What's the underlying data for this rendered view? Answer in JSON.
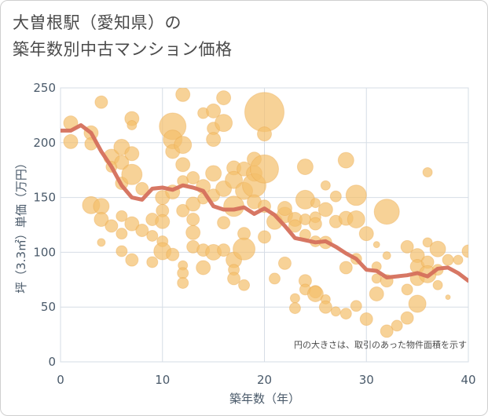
{
  "title_lines": [
    "大曽根駅（愛知県）の",
    "築年数別中古マンション価格"
  ],
  "chart_data": {
    "type": "scatter",
    "xlabel": "築年数（年）",
    "ylabel": "坪（3.3㎡）単価（万円）",
    "xlim": [
      0,
      40
    ],
    "ylim": [
      0,
      250
    ],
    "xticks": [
      0,
      10,
      20,
      30,
      40
    ],
    "yticks": [
      0,
      50,
      100,
      150,
      200,
      250
    ],
    "grid": true,
    "annotation": "円の大きさは、取引のあった物件面積を示す",
    "colors": {
      "bubble": "#f3bf6b",
      "bubble_edge": "#e8a445",
      "line": "#d5705c",
      "grid": "#d6dde6",
      "axis_text": "#4a5a6a"
    },
    "series": [
      {
        "type": "bubble",
        "points": [
          [
            1,
            218,
            9
          ],
          [
            1,
            201,
            9
          ],
          [
            3,
            209,
            9
          ],
          [
            3,
            199,
            8
          ],
          [
            4,
            237,
            8
          ],
          [
            3,
            143,
            11
          ],
          [
            4,
            142,
            10
          ],
          [
            4,
            130,
            9
          ],
          [
            4,
            109,
            5
          ],
          [
            5,
            187,
            10
          ],
          [
            5,
            178,
            7
          ],
          [
            5,
            124,
            8
          ],
          [
            6,
            196,
            10
          ],
          [
            6,
            182,
            9
          ],
          [
            6,
            163,
            8
          ],
          [
            6,
            133,
            7
          ],
          [
            6,
            117,
            7
          ],
          [
            6,
            101,
            7
          ],
          [
            7,
            222,
            9
          ],
          [
            7,
            216,
            6
          ],
          [
            7,
            190,
            9
          ],
          [
            7,
            171,
            13
          ],
          [
            7,
            126,
            9
          ],
          [
            7,
            93,
            8
          ],
          [
            8,
            158,
            8
          ],
          [
            8,
            120,
            8
          ],
          [
            9,
            130,
            8
          ],
          [
            9,
            115,
            7
          ],
          [
            9,
            91,
            7
          ],
          [
            10,
            150,
            9
          ],
          [
            10,
            138,
            8
          ],
          [
            10,
            128,
            9
          ],
          [
            10,
            110,
            7
          ],
          [
            10,
            101,
            11
          ],
          [
            11,
            215,
            17
          ],
          [
            11,
            203,
            12
          ],
          [
            11,
            192,
            9
          ],
          [
            11,
            155,
            9
          ],
          [
            11,
            98,
            8
          ],
          [
            12,
            244,
            9
          ],
          [
            12,
            198,
            11
          ],
          [
            12,
            180,
            9
          ],
          [
            12,
            165,
            7
          ],
          [
            12,
            138,
            8
          ],
          [
            12,
            88,
            6
          ],
          [
            12,
            81,
            7
          ],
          [
            12,
            72,
            7
          ],
          [
            13,
            168,
            8
          ],
          [
            13,
            144,
            9
          ],
          [
            13,
            130,
            8
          ],
          [
            13,
            118,
            9
          ],
          [
            13,
            105,
            8
          ],
          [
            14,
            227,
            7
          ],
          [
            14,
            160,
            9
          ],
          [
            14,
            149,
            7
          ],
          [
            14,
            102,
            8
          ],
          [
            14,
            86,
            9
          ],
          [
            15,
            229,
            9
          ],
          [
            15,
            213,
            8
          ],
          [
            15,
            203,
            9
          ],
          [
            15,
            172,
            10
          ],
          [
            15,
            152,
            8
          ],
          [
            15,
            100,
            10
          ],
          [
            16,
            241,
            9
          ],
          [
            16,
            218,
            11
          ],
          [
            16,
            158,
            10
          ],
          [
            16,
            127,
            8
          ],
          [
            16,
            102,
            8
          ],
          [
            17,
            142,
            13
          ],
          [
            17,
            177,
            9
          ],
          [
            17,
            166,
            11
          ],
          [
            17,
            93,
            10
          ],
          [
            17,
            84,
            7
          ],
          [
            17,
            76,
            8
          ],
          [
            18,
            176,
            9
          ],
          [
            18,
            156,
            11
          ],
          [
            18,
            117,
            8
          ],
          [
            18,
            103,
            14
          ],
          [
            18,
            70,
            7
          ],
          [
            19,
            185,
            9
          ],
          [
            19,
            172,
            10
          ],
          [
            19,
            161,
            15
          ],
          [
            19,
            146,
            9
          ],
          [
            20,
            228,
            25
          ],
          [
            20,
            208,
            9
          ],
          [
            20,
            176,
            18
          ],
          [
            20,
            142,
            8
          ],
          [
            20,
            114,
            8
          ],
          [
            21,
            128,
            10
          ],
          [
            21,
            76,
            7
          ],
          [
            22,
            134,
            10
          ],
          [
            22,
            140,
            9
          ],
          [
            22,
            90,
            8
          ],
          [
            23,
            130,
            9
          ],
          [
            23,
            124,
            8
          ],
          [
            23,
            58,
            6
          ],
          [
            23,
            49,
            7
          ],
          [
            24,
            178,
            10
          ],
          [
            24,
            148,
            12
          ],
          [
            24,
            130,
            7
          ],
          [
            24,
            116,
            7
          ],
          [
            24,
            74,
            8
          ],
          [
            24,
            66,
            7
          ],
          [
            25,
            145,
            6
          ],
          [
            25,
            132,
            7
          ],
          [
            25,
            126,
            8
          ],
          [
            25,
            110,
            7
          ],
          [
            25,
            64,
            8
          ],
          [
            25,
            62,
            10
          ],
          [
            26,
            161,
            6
          ],
          [
            26,
            139,
            9
          ],
          [
            26,
            109,
            8
          ],
          [
            26,
            57,
            6
          ],
          [
            26,
            50,
            8
          ],
          [
            27,
            151,
            7
          ],
          [
            27,
            128,
            8
          ],
          [
            27,
            46,
            6
          ],
          [
            28,
            184,
            10
          ],
          [
            28,
            131,
            9
          ],
          [
            28,
            86,
            8
          ],
          [
            28,
            44,
            7
          ],
          [
            29,
            152,
            13
          ],
          [
            29,
            130,
            11
          ],
          [
            29,
            94,
            7
          ],
          [
            29,
            51,
            7
          ],
          [
            30,
            117,
            9
          ],
          [
            30,
            39,
            8
          ],
          [
            31,
            87,
            6
          ],
          [
            31,
            76,
            6
          ],
          [
            31,
            62,
            9
          ],
          [
            31,
            107,
            4
          ],
          [
            32,
            137,
            16
          ],
          [
            32,
            97,
            5
          ],
          [
            32,
            74,
            8
          ],
          [
            32,
            28,
            8
          ],
          [
            33,
            33,
            7
          ],
          [
            34,
            105,
            8
          ],
          [
            34,
            66,
            7
          ],
          [
            34,
            40,
            8
          ],
          [
            35,
            97,
            9
          ],
          [
            35,
            87,
            9
          ],
          [
            35,
            53,
            11
          ],
          [
            35,
            76,
            9
          ],
          [
            36,
            173,
            6
          ],
          [
            36,
            109,
            6
          ],
          [
            36,
            91,
            8
          ],
          [
            36,
            80,
            11
          ],
          [
            37,
            103,
            10
          ],
          [
            37,
            84,
            7
          ],
          [
            37,
            70,
            6
          ],
          [
            38,
            93,
            7
          ],
          [
            38,
            59,
            3
          ],
          [
            39,
            93,
            6
          ],
          [
            40,
            101,
            8
          ]
        ]
      },
      {
        "type": "line",
        "points": [
          [
            0,
            211
          ],
          [
            1,
            211
          ],
          [
            2,
            216
          ],
          [
            3,
            209
          ],
          [
            4,
            192
          ],
          [
            5,
            178
          ],
          [
            6,
            161
          ],
          [
            7,
            150
          ],
          [
            8,
            148
          ],
          [
            9,
            158
          ],
          [
            10,
            159
          ],
          [
            11,
            157
          ],
          [
            12,
            161
          ],
          [
            13,
            159
          ],
          [
            14,
            156
          ],
          [
            15,
            142
          ],
          [
            16,
            139
          ],
          [
            17,
            139
          ],
          [
            18,
            141
          ],
          [
            19,
            135
          ],
          [
            20,
            140
          ],
          [
            21,
            134
          ],
          [
            22,
            124
          ],
          [
            23,
            113
          ],
          [
            24,
            111
          ],
          [
            25,
            109
          ],
          [
            26,
            110
          ],
          [
            27,
            105
          ],
          [
            28,
            99
          ],
          [
            29,
            94
          ],
          [
            30,
            84
          ],
          [
            31,
            83
          ],
          [
            32,
            77
          ],
          [
            33,
            78
          ],
          [
            34,
            79
          ],
          [
            35,
            81
          ],
          [
            36,
            78
          ],
          [
            37,
            85
          ],
          [
            38,
            86
          ],
          [
            39,
            81
          ],
          [
            40,
            74
          ]
        ]
      }
    ]
  }
}
